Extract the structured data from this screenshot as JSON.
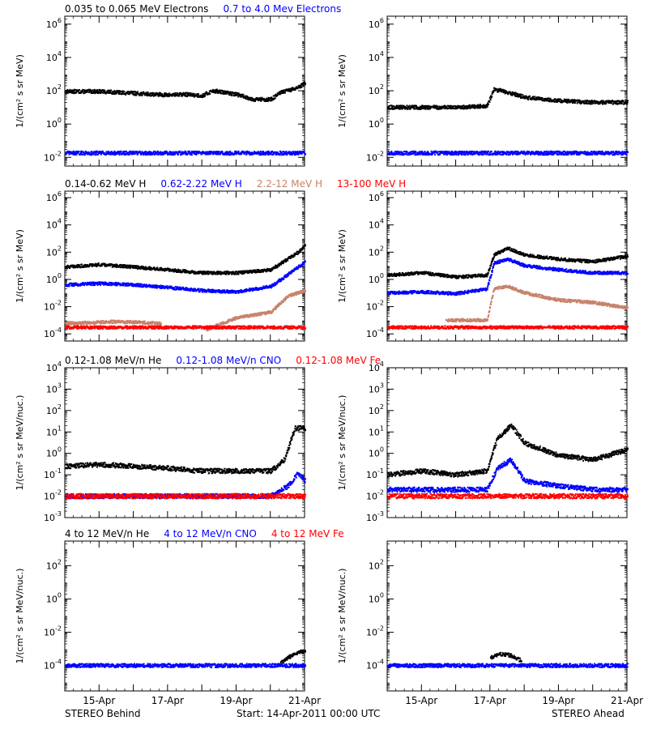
{
  "footer": {
    "left": "STEREO Behind",
    "center": "Start: 14-Apr-2011 00:00 UTC",
    "right": "STEREO Ahead"
  },
  "colors": {
    "black": "#000000",
    "blue": "#0000ff",
    "tan": "#c8826a",
    "red": "#ff0000"
  },
  "chart_data": [
    {
      "type": "scatter",
      "row": 1,
      "legend": [
        {
          "label": "0.035 to 0.065 MeV Electrons",
          "color": "#000000"
        },
        {
          "label": "0.7 to 4.0 Mev Electrons",
          "color": "#0000ff"
        }
      ],
      "ylabel": "1/(cm² s sr MeV)",
      "ylog": true,
      "ylim": [
        0.003,
        3000000
      ],
      "yticks": [
        {
          "v": 0.01,
          "base": "10",
          "exp": "-2"
        },
        {
          "v": 1,
          "base": "10",
          "exp": "0"
        },
        {
          "v": 100,
          "base": "10",
          "exp": "2"
        },
        {
          "v": 10000,
          "base": "10",
          "exp": "4"
        },
        {
          "v": 1000000,
          "base": "10",
          "exp": "6"
        }
      ],
      "panels": [
        {
          "name": "STEREO Behind",
          "series": [
            {
              "name": "0.035 to 0.065 MeV Electrons",
              "color": "#000000",
              "x": [
                0,
                1,
                2,
                3,
                3.5,
                4,
                4.3,
                5,
                5.5,
                6,
                6.3,
                6.8,
                7,
                7
              ],
              "y": [
                90,
                90,
                70,
                55,
                60,
                50,
                100,
                60,
                30,
                30,
                80,
                150,
                300,
                300
              ]
            },
            {
              "name": "0.7 to 4.0 Mev Electrons",
              "color": "#0000ff",
              "x": [
                0,
                1,
                2,
                3,
                4,
                5,
                6,
                7
              ],
              "y": [
                0.018,
                0.018,
                0.018,
                0.018,
                0.018,
                0.018,
                0.018,
                0.018
              ]
            }
          ]
        },
        {
          "name": "STEREO Ahead",
          "series": [
            {
              "name": "0.035 to 0.065 MeV Electrons",
              "color": "#000000",
              "x": [
                0,
                1,
                2,
                2.9,
                3.1,
                3.5,
                4,
                5,
                6,
                7
              ],
              "y": [
                10,
                10,
                10,
                12,
                120,
                80,
                40,
                25,
                20,
                20
              ]
            },
            {
              "name": "0.7 to 4.0 Mev Electrons",
              "color": "#0000ff",
              "x": [
                0,
                1,
                2,
                3,
                4,
                5,
                6,
                7
              ],
              "y": [
                0.018,
                0.018,
                0.018,
                0.018,
                0.018,
                0.018,
                0.018,
                0.018
              ]
            }
          ]
        }
      ]
    },
    {
      "type": "scatter",
      "row": 2,
      "legend": [
        {
          "label": "0.14-0.62 MeV H",
          "color": "#000000"
        },
        {
          "label": "0.62-2.22 MeV H",
          "color": "#0000ff"
        },
        {
          "label": "2.2-12 MeV H",
          "color": "#c8826a"
        },
        {
          "label": "13-100 MeV H",
          "color": "#ff0000"
        }
      ],
      "ylabel": "1/(cm² s sr MeV)",
      "ylog": true,
      "ylim": [
        3e-05,
        3000000
      ],
      "yticks": [
        {
          "v": 0.0001,
          "base": "10",
          "exp": "-4"
        },
        {
          "v": 0.01,
          "base": "10",
          "exp": "-2"
        },
        {
          "v": 1,
          "base": "10",
          "exp": "0"
        },
        {
          "v": 100,
          "base": "10",
          "exp": "2"
        },
        {
          "v": 10000,
          "base": "10",
          "exp": "4"
        },
        {
          "v": 1000000,
          "base": "10",
          "exp": "6"
        }
      ],
      "panels": [
        {
          "name": "STEREO Behind",
          "series": [
            {
              "name": "0.14-0.62 MeV H",
              "color": "#000000",
              "x": [
                0,
                1,
                2,
                3,
                4,
                5,
                6,
                6.3,
                6.8,
                7
              ],
              "y": [
                8,
                12,
                8,
                5,
                3,
                3,
                5,
                15,
                100,
                300
              ]
            },
            {
              "name": "0.62-2.22 MeV H",
              "color": "#0000ff",
              "x": [
                0,
                1,
                2,
                3,
                4,
                5,
                6,
                6.3,
                6.8,
                7
              ],
              "y": [
                0.4,
                0.5,
                0.4,
                0.25,
                0.15,
                0.12,
                0.3,
                1,
                8,
                20
              ]
            },
            {
              "name": "2.2-12 MeV H",
              "color": "#c8826a",
              "x": [
                0,
                1,
                1.5,
                2.8,
                3.8,
                4.1,
                5,
                6,
                6.5,
                7
              ],
              "y": [
                0.0006,
                0.0007,
                0.0008,
                0.0006,
                null,
                0.0002,
                0.0015,
                0.004,
                0.06,
                0.15
              ]
            },
            {
              "name": "13-100 MeV H",
              "color": "#ff0000",
              "x": [
                0,
                1,
                2,
                3,
                4,
                5,
                6,
                7
              ],
              "y": [
                0.0003,
                0.0003,
                0.0003,
                0.0003,
                0.0003,
                0.0003,
                0.0003,
                0.0003
              ]
            }
          ]
        },
        {
          "name": "STEREO Ahead",
          "series": [
            {
              "name": "0.14-0.62 MeV H",
              "color": "#000000",
              "x": [
                0,
                1,
                2,
                2.9,
                3.1,
                3.5,
                4,
                5,
                6,
                7
              ],
              "y": [
                2,
                3,
                1.5,
                2,
                60,
                200,
                60,
                30,
                20,
                50
              ]
            },
            {
              "name": "0.62-2.22 MeV H",
              "color": "#0000ff",
              "x": [
                0,
                1,
                2,
                2.9,
                3.1,
                3.5,
                4,
                5,
                6,
                7
              ],
              "y": [
                0.1,
                0.12,
                0.09,
                0.2,
                15,
                30,
                10,
                5,
                3,
                3
              ]
            },
            {
              "name": "2.2-12 MeV H",
              "color": "#c8826a",
              "x": [
                1.7,
                2.5,
                2.9,
                3.1,
                3.5,
                4,
                5,
                6,
                7
              ],
              "y": [
                0.001,
                0.001,
                0.001,
                0.2,
                0.3,
                0.1,
                0.03,
                0.02,
                0.008
              ]
            },
            {
              "name": "13-100 MeV H",
              "color": "#ff0000",
              "x": [
                0,
                1,
                2,
                3,
                4,
                5,
                6,
                7
              ],
              "y": [
                0.0003,
                0.0003,
                0.0003,
                0.0003,
                0.0003,
                0.0003,
                0.0003,
                0.0003
              ]
            }
          ]
        }
      ]
    },
    {
      "type": "scatter",
      "row": 3,
      "legend": [
        {
          "label": "0.12-1.08 MeV/n He",
          "color": "#000000"
        },
        {
          "label": "0.12-1.08 MeV/n CNO",
          "color": "#0000ff"
        },
        {
          "label": "0.12-1.08 MeV Fe",
          "color": "#ff0000"
        }
      ],
      "ylabel": "1/(cm² s sr MeV/nuc.)",
      "ylog": true,
      "ylim": [
        0.001,
        10000
      ],
      "yticks": [
        {
          "v": 0.001,
          "base": "10",
          "exp": "-3"
        },
        {
          "v": 0.01,
          "base": "10",
          "exp": "-2"
        },
        {
          "v": 0.1,
          "base": "10",
          "exp": "-1"
        },
        {
          "v": 1,
          "base": "10",
          "exp": "0"
        },
        {
          "v": 10,
          "base": "10",
          "exp": "1"
        },
        {
          "v": 100,
          "base": "10",
          "exp": "2"
        },
        {
          "v": 1000,
          "base": "10",
          "exp": "3"
        },
        {
          "v": 10000,
          "base": "10",
          "exp": "4"
        }
      ],
      "panels": [
        {
          "name": "STEREO Behind",
          "series": [
            {
              "name": "0.12-1.08 MeV/n He",
              "color": "#000000",
              "x": [
                0,
                1,
                2,
                3,
                4,
                5,
                6,
                6.4,
                6.7,
                7
              ],
              "y": [
                0.25,
                0.3,
                0.25,
                0.2,
                0.15,
                0.15,
                0.15,
                0.5,
                15,
                15
              ]
            },
            {
              "name": "0.12-1.08 MeV/n CNO",
              "color": "#0000ff",
              "x": [
                0,
                1,
                2,
                3,
                4,
                5,
                6,
                6.5,
                6.8,
                7
              ],
              "y": [
                0.01,
                0.01,
                0.01,
                0.01,
                0.01,
                0.01,
                0.01,
                0.03,
                0.12,
                0.05
              ]
            },
            {
              "name": "0.12-1.08 MeV Fe",
              "color": "#ff0000",
              "x": [
                0,
                1,
                2,
                3,
                4,
                5,
                6,
                7
              ],
              "y": [
                0.01,
                0.01,
                0.01,
                0.01,
                0.01,
                0.01,
                0.01,
                0.01
              ]
            }
          ]
        },
        {
          "name": "STEREO Ahead",
          "series": [
            {
              "name": "0.12-1.08 MeV/n He",
              "color": "#000000",
              "x": [
                0,
                1,
                2,
                2.9,
                3.2,
                3.6,
                4,
                5,
                6,
                7
              ],
              "y": [
                0.1,
                0.15,
                0.1,
                0.15,
                5,
                20,
                3,
                0.8,
                0.5,
                1.5
              ]
            },
            {
              "name": "0.12-1.08 MeV/n CNO",
              "color": "#0000ff",
              "x": [
                0,
                1,
                2,
                2.9,
                3.2,
                3.6,
                4,
                5,
                6,
                7
              ],
              "y": [
                0.02,
                0.02,
                0.02,
                0.02,
                0.2,
                0.5,
                0.05,
                0.03,
                0.02,
                0.02
              ]
            },
            {
              "name": "0.12-1.08 MeV Fe",
              "color": "#ff0000",
              "x": [
                0,
                1,
                2,
                3,
                4,
                5,
                6,
                7
              ],
              "y": [
                0.01,
                0.01,
                0.01,
                0.01,
                0.01,
                0.01,
                0.01,
                0.01
              ]
            }
          ]
        }
      ]
    },
    {
      "type": "scatter",
      "row": 4,
      "legend": [
        {
          "label": "4 to 12 MeV/n He",
          "color": "#000000"
        },
        {
          "label": "4 to 12 MeV/n CNO",
          "color": "#0000ff"
        },
        {
          "label": "4 to 12 MeV Fe",
          "color": "#ff0000"
        }
      ],
      "ylabel": "1/(cm² s sr MeV/nuc.)",
      "ylog": true,
      "ylim": [
        3e-06,
        3000
      ],
      "yticks": [
        {
          "v": 0.0001,
          "base": "10",
          "exp": "-4"
        },
        {
          "v": 0.01,
          "base": "10",
          "exp": "-2"
        },
        {
          "v": 1,
          "base": "10",
          "exp": "0"
        },
        {
          "v": 100,
          "base": "10",
          "exp": "2"
        }
      ],
      "panels": [
        {
          "name": "STEREO Behind",
          "series": [
            {
              "name": "4 to 12 MeV/n He",
              "color": "#000000",
              "x": [
                6.2,
                6.5,
                6.8,
                7
              ],
              "y": [
                0.0001,
                0.0003,
                0.0006,
                0.0008
              ]
            },
            {
              "name": "4 to 12 MeV/n CNO",
              "color": "#0000ff",
              "x": [
                0,
                1,
                2,
                3,
                4,
                5,
                6,
                7
              ],
              "y": [
                0.0001,
                0.0001,
                0.0001,
                0.0001,
                0.0001,
                0.0001,
                0.0001,
                0.0001
              ]
            }
          ]
        },
        {
          "name": "STEREO Ahead",
          "series": [
            {
              "name": "4 to 12 MeV/n He",
              "color": "#000000",
              "x": [
                3,
                3.3,
                3.6,
                3.9
              ],
              "y": [
                0.0003,
                0.0005,
                0.0004,
                0.0002
              ]
            },
            {
              "name": "4 to 12 MeV/n CNO",
              "color": "#0000ff",
              "x": [
                0,
                1,
                2,
                3,
                4,
                5,
                6,
                7
              ],
              "y": [
                0.0001,
                0.0001,
                0.0001,
                0.0001,
                0.0001,
                0.0001,
                0.0001,
                0.0001
              ]
            }
          ]
        }
      ]
    }
  ],
  "x_axis": {
    "range": [
      0,
      7
    ],
    "ticks": [
      {
        "v": 1,
        "label": "15-Apr"
      },
      {
        "v": 3,
        "label": "17-Apr"
      },
      {
        "v": 5,
        "label": "19-Apr"
      },
      {
        "v": 7,
        "label": "21-Apr"
      }
    ]
  }
}
